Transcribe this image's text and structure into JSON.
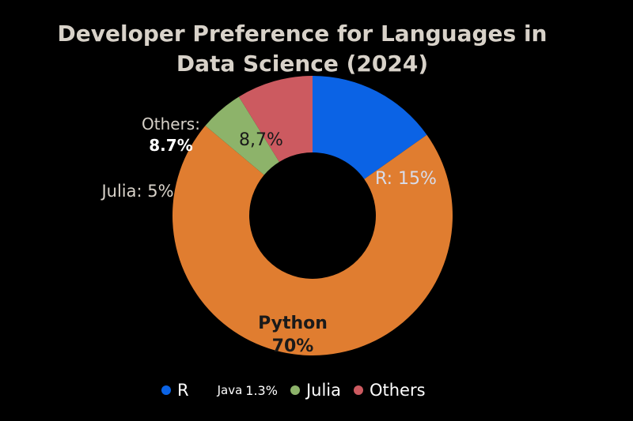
{
  "chart_data": {
    "type": "donut",
    "title_line1": "Developer Preference for Languages in",
    "title_line2": "Data Science (2024)",
    "slices": [
      {
        "label": "R",
        "value": 15,
        "color": "#0b63e5",
        "slice_label": "R: 15%"
      },
      {
        "label": "Python",
        "value": 70,
        "color": "#e07d30",
        "slice_label_1": "Python",
        "slice_label_2": "70%"
      },
      {
        "label": "Julia",
        "value": 5,
        "color": "#8db36a",
        "slice_label": "Julia: 5%"
      },
      {
        "label": "Others",
        "value": 8.7,
        "color": "#cc5a60",
        "slice_label": "8,7%",
        "outside_label_1": "Others:",
        "outside_label_2": "8.7%"
      }
    ],
    "legend": [
      {
        "label": "R",
        "color": "#0b63e5"
      },
      {
        "label": "Java",
        "value_text": "1.3%"
      },
      {
        "label": "Julia",
        "color": "#8db36a"
      },
      {
        "label": "Others",
        "color": "#cc5a60"
      }
    ]
  }
}
